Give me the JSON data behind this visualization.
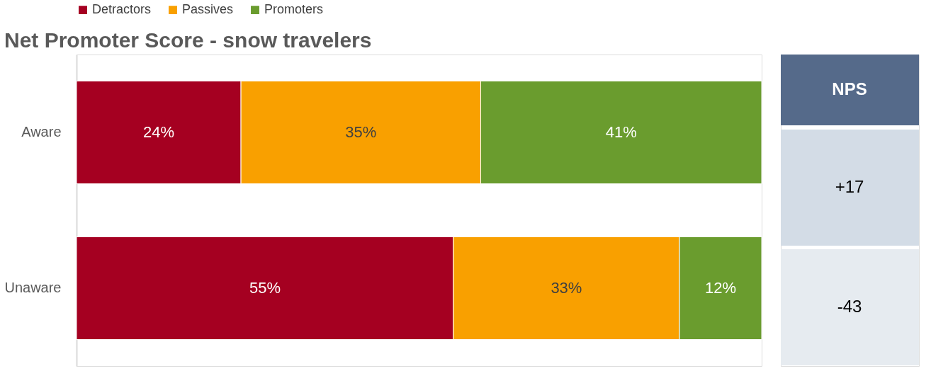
{
  "chart_data": [
    {
      "type": "bar",
      "orientation": "horizontal",
      "stacked": true,
      "title": "Net Promoter Score - snow travelers",
      "categories": [
        "Aware",
        "Unaware"
      ],
      "legend": "top",
      "series": [
        {
          "name": "Detractors",
          "color": "#a50021",
          "values": [
            24,
            55
          ],
          "value_labels": [
            "24%",
            "55%"
          ]
        },
        {
          "name": "Passives",
          "color": "#f9a000",
          "values": [
            35,
            33
          ],
          "value_labels": [
            "35%",
            "33%"
          ]
        },
        {
          "name": "Promoters",
          "color": "#6a9c2e",
          "values": [
            41,
            12
          ],
          "value_labels": [
            "41%",
            "12%"
          ]
        }
      ]
    },
    {
      "type": "other",
      "title": "NPS",
      "annotations": [
        "+17",
        "-43"
      ]
    }
  ]
}
